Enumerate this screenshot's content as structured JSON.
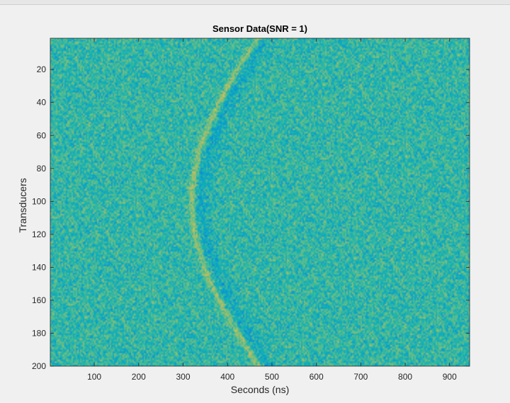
{
  "chart_data": {
    "type": "heatmap",
    "title": "Sensor Data(SNR = 1)",
    "xlabel": "Seconds (ns)",
    "ylabel": "Transducers",
    "xlim": [
      1,
      945
    ],
    "ylim": [
      1,
      200
    ],
    "y_direction": "reverse",
    "x_ticks": [
      100,
      200,
      300,
      400,
      500,
      600,
      700,
      800,
      900
    ],
    "y_ticks": [
      20,
      40,
      60,
      80,
      100,
      120,
      140,
      160,
      180,
      200
    ],
    "colormap": "parula",
    "colors": {
      "background": "#2fb4a8",
      "signal": "#c8d84a",
      "shadow": "#1e9fd8"
    },
    "signal_curve": {
      "shape": "hyperbola",
      "apex_transducer": 100,
      "apex_time_ns": 320,
      "time_at_transducer_1_ns": 470,
      "time_at_transducer_200_ns": 470
    },
    "grid": false
  }
}
